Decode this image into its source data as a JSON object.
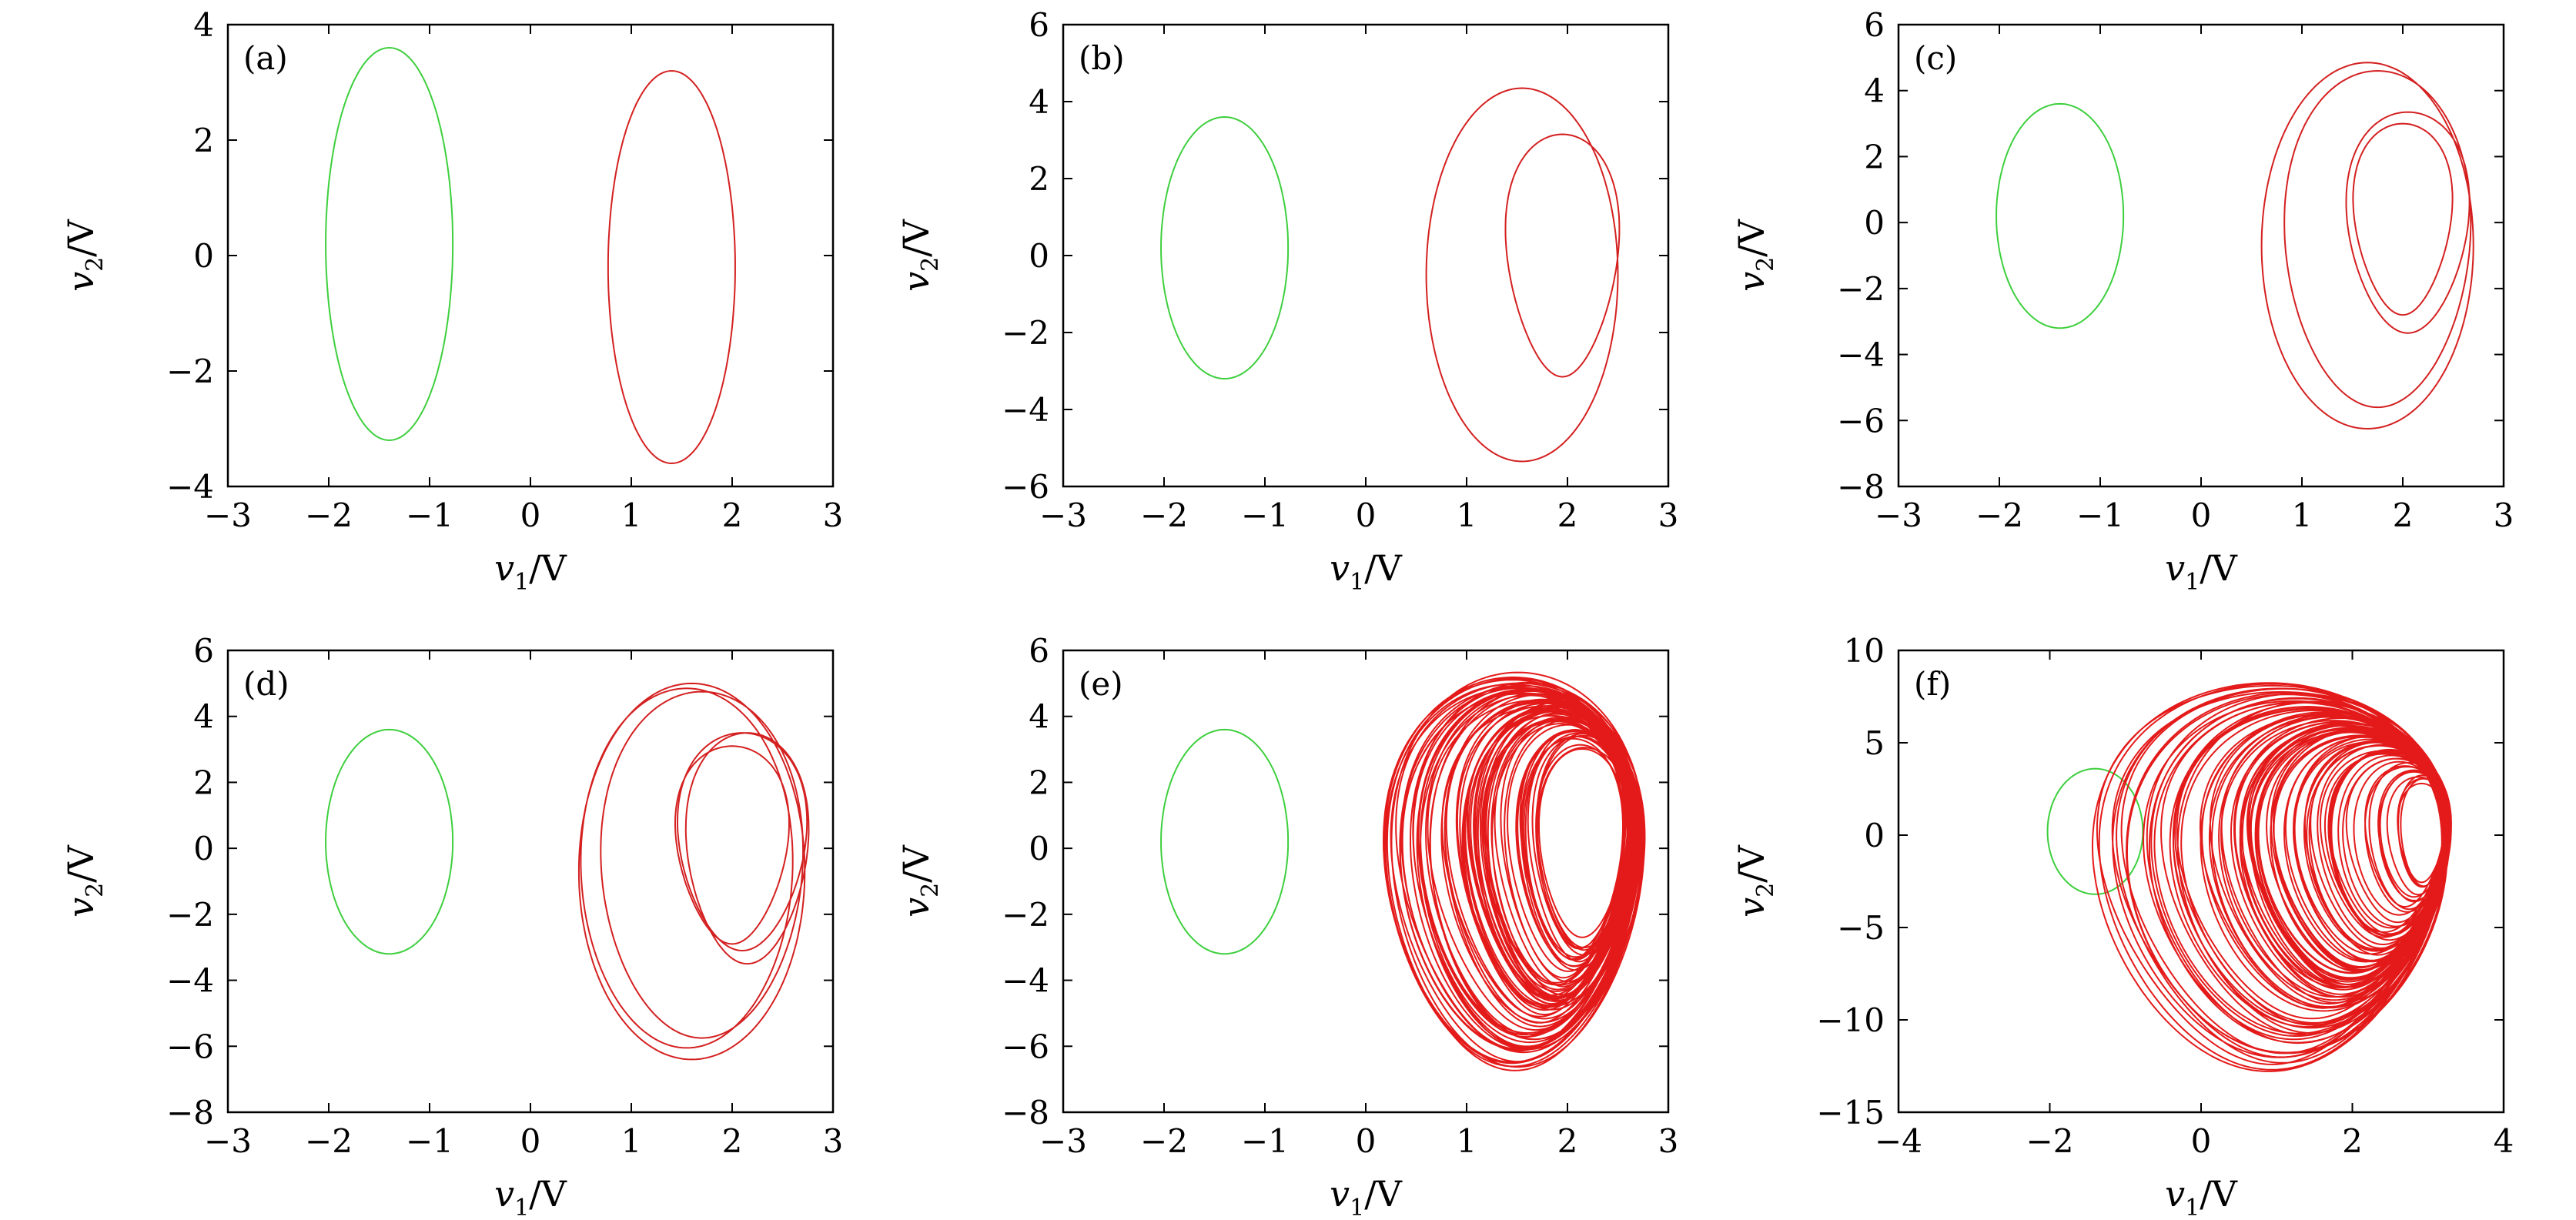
{
  "figure": {
    "panels": [
      "a",
      "b",
      "c",
      "d",
      "e",
      "f"
    ]
  },
  "chart_data": [
    {
      "panel": "(a)",
      "type": "line",
      "xlabel_main": "v",
      "xlabel_sub": "1",
      "xlabel_unit": "/V",
      "ylabel_main": "v",
      "ylabel_sub": "2",
      "ylabel_unit": "/V",
      "xlim": [
        -3,
        3
      ],
      "ylim": [
        -4,
        4
      ],
      "xticks": [
        -3,
        -2,
        -1,
        0,
        1,
        2,
        3
      ],
      "yticks": [
        -4,
        -2,
        0,
        2,
        4
      ],
      "xtick_labels": [
        "−3",
        "−2",
        "−1",
        "0",
        "1",
        "2",
        "3"
      ],
      "ytick_labels": [
        "−4",
        "−2",
        "0",
        "2",
        "4"
      ],
      "series": [
        {
          "color": "#3ecf3e",
          "width": 2,
          "loops": [
            {
              "cx": -1.4,
              "cy": 0.2,
              "rx": 0.63,
              "ry": 3.4,
              "shift": 0.0
            }
          ]
        },
        {
          "color": "#d42020",
          "width": 2,
          "loops": [
            {
              "cx": 1.4,
              "cy": -0.2,
              "rx": 0.63,
              "ry": 3.4,
              "shift": 0.0
            }
          ]
        }
      ]
    },
    {
      "panel": "(b)",
      "type": "line",
      "xlabel_main": "v",
      "xlabel_sub": "1",
      "xlabel_unit": "/V",
      "ylabel_main": "v",
      "ylabel_sub": "2",
      "ylabel_unit": "/V",
      "xlim": [
        -3,
        3
      ],
      "ylim": [
        -6,
        6
      ],
      "xticks": [
        -3,
        -2,
        -1,
        0,
        1,
        2,
        3
      ],
      "yticks": [
        -6,
        -4,
        -2,
        0,
        2,
        4,
        6
      ],
      "xtick_labels": [
        "−3",
        "−2",
        "−1",
        "0",
        "1",
        "2",
        "3"
      ],
      "ytick_labels": [
        "−6",
        "−4",
        "−2",
        "0",
        "2",
        "4",
        "6"
      ],
      "series": [
        {
          "color": "#3ecf3e",
          "width": 2,
          "loops": [
            {
              "cx": -1.4,
              "cy": 0.2,
              "rx": 0.63,
              "ry": 3.4,
              "shift": 0.0
            }
          ]
        },
        {
          "color": "#d42020",
          "width": 2,
          "loops": [
            {
              "cx": 1.55,
              "cy": -0.5,
              "rx": 0.95,
              "ry": 4.85,
              "shift": 0.0
            },
            {
              "cx": 1.95,
              "cy": 0.0,
              "rx": 0.55,
              "ry": 3.15,
              "shift": 0.12
            }
          ]
        }
      ]
    },
    {
      "panel": "(c)",
      "type": "line",
      "xlabel_main": "v",
      "xlabel_sub": "1",
      "xlabel_unit": "/V",
      "ylabel_main": "v",
      "ylabel_sub": "2",
      "ylabel_unit": "/V",
      "xlim": [
        -3,
        3
      ],
      "ylim": [
        -8,
        6
      ],
      "xticks": [
        -3,
        -2,
        -1,
        0,
        1,
        2,
        3
      ],
      "yticks": [
        -8,
        -6,
        -4,
        -2,
        0,
        2,
        4,
        6
      ],
      "xtick_labels": [
        "−3",
        "−2",
        "−1",
        "0",
        "1",
        "2",
        "3"
      ],
      "ytick_labels": [
        "−8",
        "−6",
        "−4",
        "−2",
        "0",
        "2",
        "4",
        "6"
      ],
      "series": [
        {
          "color": "#3ecf3e",
          "width": 2,
          "loops": [
            {
              "cx": -1.4,
              "cy": 0.2,
              "rx": 0.63,
              "ry": 3.4,
              "shift": 0.0
            }
          ]
        },
        {
          "color": "#d42020",
          "width": 2,
          "loops": [
            {
              "cx": 1.65,
              "cy": -0.7,
              "rx": 1.05,
              "ry": 5.55,
              "shift": 0.0
            },
            {
              "cx": 1.75,
              "cy": -0.5,
              "rx": 0.92,
              "ry": 5.1,
              "shift": 0.05
            },
            {
              "cx": 2.05,
              "cy": 0.0,
              "rx": 0.6,
              "ry": 3.35,
              "shift": 0.1
            },
            {
              "cx": 2.0,
              "cy": 0.1,
              "rx": 0.48,
              "ry": 2.9,
              "shift": 0.12
            }
          ]
        }
      ]
    },
    {
      "panel": "(d)",
      "type": "line",
      "xlabel_main": "v",
      "xlabel_sub": "1",
      "xlabel_unit": "/V",
      "ylabel_main": "v",
      "ylabel_sub": "2",
      "ylabel_unit": "/V",
      "xlim": [
        -3,
        3
      ],
      "ylim": [
        -8,
        6
      ],
      "xticks": [
        -3,
        -2,
        -1,
        0,
        1,
        2,
        3
      ],
      "yticks": [
        -8,
        -6,
        -4,
        -2,
        0,
        2,
        4,
        6
      ],
      "xtick_labels": [
        "−3",
        "−2",
        "−1",
        "0",
        "1",
        "2",
        "3"
      ],
      "ytick_labels": [
        "−8",
        "−6",
        "−4",
        "−2",
        "0",
        "2",
        "4",
        "6"
      ],
      "series": [
        {
          "color": "#3ecf3e",
          "width": 2,
          "loops": [
            {
              "cx": -1.4,
              "cy": 0.2,
              "rx": 0.63,
              "ry": 3.4,
              "shift": 0.0
            }
          ]
        },
        {
          "color": "#d42020",
          "width": 2,
          "loops": [
            {
              "cx": 1.6,
              "cy": -0.7,
              "rx": 1.12,
              "ry": 5.7,
              "shift": 0.0
            },
            {
              "cx": 1.7,
              "cy": -0.5,
              "rx": 1.0,
              "ry": 5.25,
              "shift": 0.04
            },
            {
              "cx": 1.55,
              "cy": -0.6,
              "rx": 1.05,
              "ry": 5.45,
              "shift": 0.02
            },
            {
              "cx": 2.1,
              "cy": 0.2,
              "rx": 0.63,
              "ry": 3.3,
              "shift": 0.1
            },
            {
              "cx": 2.0,
              "cy": 0.1,
              "rx": 0.55,
              "ry": 3.0,
              "shift": 0.12
            },
            {
              "cx": 2.15,
              "cy": 0.0,
              "rx": 0.6,
              "ry": 3.5,
              "shift": 0.09
            }
          ]
        }
      ]
    },
    {
      "panel": "(e)",
      "type": "line",
      "xlabel_main": "v",
      "xlabel_sub": "1",
      "xlabel_unit": "/V",
      "ylabel_main": "v",
      "ylabel_sub": "2",
      "ylabel_unit": "/V",
      "xlim": [
        -3,
        3
      ],
      "ylim": [
        -8,
        6
      ],
      "xticks": [
        -3,
        -2,
        -1,
        0,
        1,
        2,
        3
      ],
      "yticks": [
        -8,
        -6,
        -4,
        -2,
        0,
        2,
        4,
        6
      ],
      "xtick_labels": [
        "−3",
        "−2",
        "−1",
        "0",
        "1",
        "2",
        "3"
      ],
      "ytick_labels": [
        "−8",
        "−6",
        "−4",
        "−2",
        "0",
        "2",
        "4",
        "6"
      ],
      "series": [
        {
          "color": "#3ecf3e",
          "width": 2,
          "loops": [
            {
              "cx": -1.4,
              "cy": 0.2,
              "rx": 0.63,
              "ry": 3.4,
              "shift": 0.0
            }
          ]
        },
        {
          "color": "#e41a1a",
          "width": 2,
          "chaotic": true,
          "count": 70,
          "cx_range": [
            1.45,
            2.15
          ],
          "rx_range": [
            0.42,
            1.28
          ],
          "ry_range": [
            3.0,
            5.9
          ],
          "cy_range": [
            -0.75,
            0.15
          ]
        }
      ]
    },
    {
      "panel": "(f)",
      "type": "line",
      "xlabel_main": "v",
      "xlabel_sub": "1",
      "xlabel_unit": "/V",
      "ylabel_main": "v",
      "ylabel_sub": "2",
      "ylabel_unit": "/V",
      "xlim": [
        -4,
        4
      ],
      "ylim": [
        -15,
        10
      ],
      "xticks": [
        -4,
        -2,
        0,
        2,
        4
      ],
      "yticks": [
        -15,
        -10,
        -5,
        0,
        5,
        10
      ],
      "xtick_labels": [
        "−4",
        "−2",
        "0",
        "2",
        "4"
      ],
      "ytick_labels": [
        "−15",
        "−10",
        "−5",
        "0",
        "5",
        "10"
      ],
      "series": [
        {
          "color": "#3ecf3e",
          "width": 2,
          "loops": [
            {
              "cx": -1.4,
              "cy": 0.2,
              "rx": 0.63,
              "ry": 3.4,
              "shift": 0.0
            }
          ]
        },
        {
          "color": "#e41a1a",
          "width": 2,
          "chaotic": true,
          "count": 90,
          "cx_range": [
            0.9,
            3.0
          ],
          "rx_range": [
            0.25,
            2.3
          ],
          "ry_range": [
            2.5,
            10.5
          ],
          "cy_range": [
            -2.3,
            0.2
          ]
        }
      ]
    }
  ]
}
